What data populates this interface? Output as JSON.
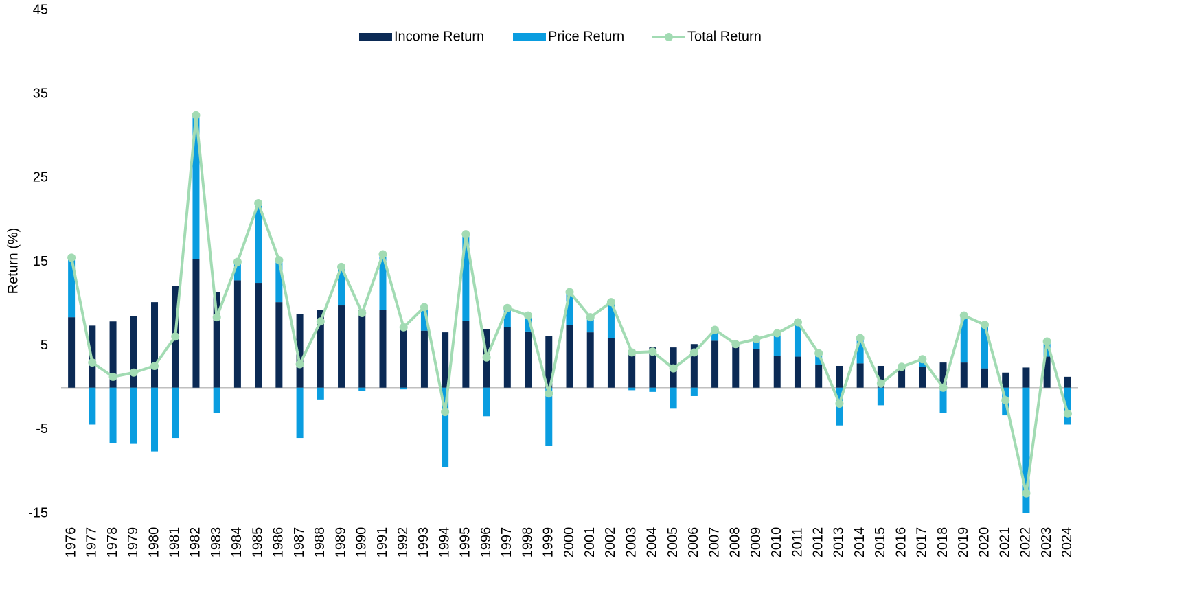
{
  "chart_data": {
    "type": "stacked_bar_line",
    "y_label": "Return (%)",
    "categories": [
      "1976",
      "1977",
      "1978",
      "1979",
      "1980",
      "1981",
      "1982",
      "1983",
      "1984",
      "1985",
      "1986",
      "1987",
      "1988",
      "1989",
      "1990",
      "1991",
      "1992",
      "1993",
      "1994",
      "1995",
      "1996",
      "1997",
      "1998",
      "1999",
      "2000",
      "2001",
      "2002",
      "2003",
      "2004",
      "2005",
      "2006",
      "2007",
      "2008",
      "2009",
      "2010",
      "2011",
      "2012",
      "2013",
      "2014",
      "2015",
      "2016",
      "2017",
      "2018",
      "2019",
      "2020",
      "2021",
      "2022",
      "2023",
      "2024"
    ],
    "series": [
      {
        "name": "Income Return",
        "color": "#0b2a55",
        "kind": "bar",
        "values": [
          8.4,
          7.4,
          7.9,
          8.5,
          10.2,
          12.1,
          15.3,
          11.4,
          12.8,
          12.5,
          10.2,
          8.8,
          9.3,
          9.8,
          9.3,
          9.3,
          7.4,
          6.8,
          6.6,
          8.0,
          7.0,
          7.2,
          6.7,
          6.2,
          7.5,
          6.6,
          5.9,
          4.5,
          4.8,
          4.8,
          5.2,
          5.6,
          5.2,
          4.6,
          3.8,
          3.7,
          2.7,
          2.6,
          2.9,
          2.6,
          2.3,
          2.5,
          3.0,
          3.0,
          2.3,
          1.8,
          2.4,
          3.7,
          1.3
        ]
      },
      {
        "name": "Price Return",
        "color": "#0a9de0",
        "kind": "bar",
        "values": [
          7.1,
          -4.4,
          -6.6,
          -6.7,
          -7.6,
          -6.0,
          17.2,
          -3.0,
          2.2,
          9.5,
          5.0,
          -6.0,
          -1.4,
          4.6,
          -0.4,
          6.6,
          -0.2,
          2.8,
          -9.5,
          10.3,
          -3.4,
          2.3,
          1.9,
          -6.9,
          3.9,
          1.8,
          4.3,
          -0.3,
          -0.5,
          -2.5,
          -1.0,
          1.3,
          0.0,
          1.2,
          2.7,
          4.1,
          1.4,
          -4.5,
          3.0,
          -2.1,
          0.2,
          0.9,
          -3.0,
          5.6,
          5.2,
          -3.3,
          -15.0,
          1.8,
          -4.4
        ]
      },
      {
        "name": "Total Return",
        "color": "#a2dbb3",
        "kind": "line",
        "values": [
          15.5,
          3.0,
          1.3,
          1.8,
          2.6,
          6.1,
          32.5,
          8.4,
          15.0,
          22.0,
          15.2,
          2.8,
          7.9,
          14.4,
          8.9,
          15.9,
          7.2,
          9.6,
          -2.9,
          18.3,
          3.6,
          9.5,
          8.6,
          -0.7,
          11.4,
          8.4,
          10.2,
          4.2,
          4.3,
          2.3,
          4.2,
          6.9,
          5.2,
          5.8,
          6.5,
          7.8,
          4.1,
          -1.9,
          5.9,
          0.5,
          2.5,
          3.4,
          0.0,
          8.6,
          7.5,
          -1.5,
          -12.6,
          5.5,
          -3.1
        ]
      }
    ],
    "ylim": [
      -15,
      45
    ],
    "yticks": [
      -15,
      -5,
      5,
      15,
      25,
      35,
      45
    ],
    "grid": false,
    "legend": "top"
  }
}
